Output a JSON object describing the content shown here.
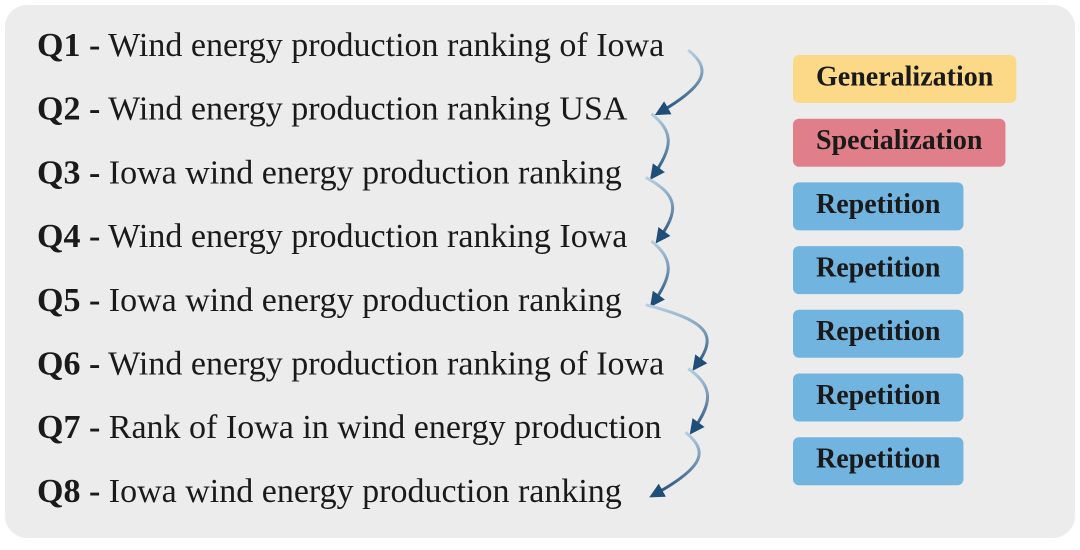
{
  "separator": "-",
  "queries": [
    {
      "id": "Q1",
      "text": "Wind energy production ranking of Iowa"
    },
    {
      "id": "Q2",
      "text": "Wind energy production ranking USA"
    },
    {
      "id": "Q3",
      "text": "Iowa wind energy production ranking"
    },
    {
      "id": "Q4",
      "text": "Wind energy production ranking Iowa"
    },
    {
      "id": "Q5",
      "text": "Iowa wind energy production ranking"
    },
    {
      "id": "Q6",
      "text": "Wind energy production ranking of Iowa"
    },
    {
      "id": "Q7",
      "text": "Rank of Iowa in wind energy production"
    },
    {
      "id": "Q8",
      "text": "Iowa wind energy production ranking"
    }
  ],
  "transitions": [
    "Generalization",
    "Specialization",
    "Repetition",
    "Repetition",
    "Repetition",
    "Repetition",
    "Repetition"
  ]
}
